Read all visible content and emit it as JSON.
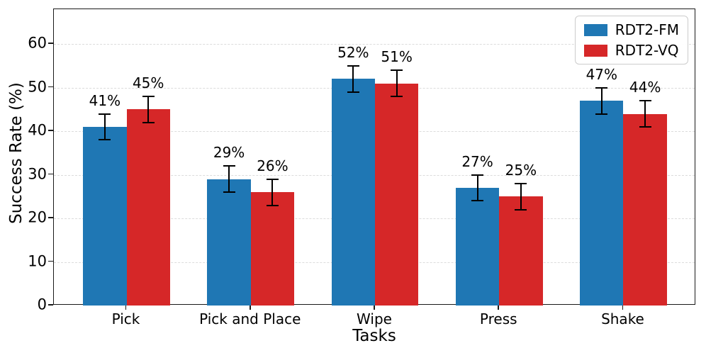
{
  "chart_data": {
    "type": "bar",
    "title": "",
    "xlabel": "Tasks",
    "ylabel": "Success Rate (%)",
    "categories": [
      "Pick",
      "Pick and Place",
      "Wipe",
      "Press",
      "Shake"
    ],
    "series": [
      {
        "name": "RDT2-FM",
        "color": "#1f77b4",
        "values": [
          41,
          29,
          52,
          27,
          47
        ],
        "errors": [
          3,
          3,
          3,
          3,
          3
        ],
        "labels": [
          "41%",
          "29%",
          "52%",
          "27%",
          "47%"
        ]
      },
      {
        "name": "RDT2-VQ",
        "color": "#d62728",
        "values": [
          45,
          26,
          51,
          25,
          44
        ],
        "errors": [
          3,
          3,
          3,
          3,
          3
        ],
        "labels": [
          "45%",
          "26%",
          "51%",
          "25%",
          "44%"
        ]
      }
    ],
    "yticks": [
      0,
      10,
      20,
      30,
      40,
      50,
      60
    ],
    "ylim": [
      0,
      68
    ],
    "grid": "horizontal-dashed",
    "gridline_color": "#dcdcdc",
    "error_bar_color": "#000000",
    "legend_position": "top-right"
  }
}
